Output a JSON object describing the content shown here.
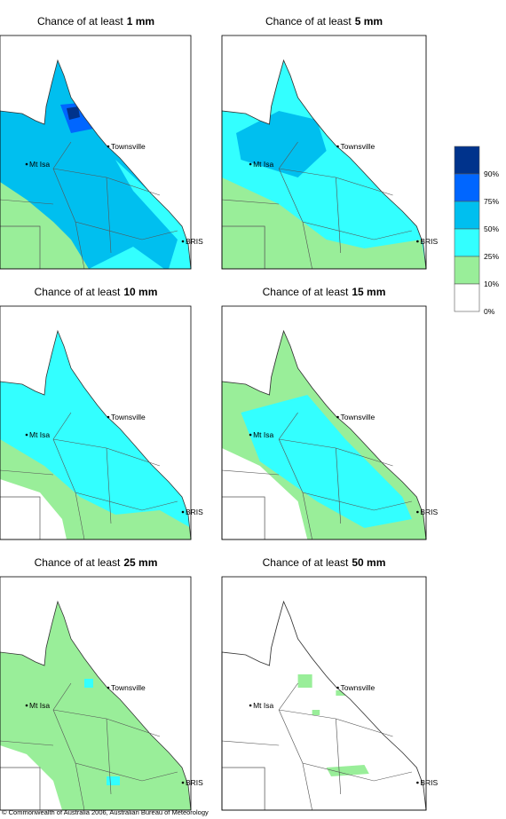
{
  "panels": [
    {
      "title_prefix": "Chance of at least",
      "amount": "1 mm"
    },
    {
      "title_prefix": "Chance of at least",
      "amount": "5 mm"
    },
    {
      "title_prefix": "Chance of at least",
      "amount": "10 mm"
    },
    {
      "title_prefix": "Chance of at least",
      "amount": "15 mm"
    },
    {
      "title_prefix": "Chance of at least",
      "amount": "25 mm"
    },
    {
      "title_prefix": "Chance of at least",
      "amount": "50 mm"
    }
  ],
  "places": [
    "Townsville",
    "Mt Isa",
    "BRIS"
  ],
  "legend": {
    "colors": [
      "#00338c",
      "#0066ff",
      "#00bfef",
      "#33ffff",
      "#99ee99",
      "#ffffff"
    ],
    "labels": [
      "90%",
      "75%",
      "50%",
      "25%",
      "10%",
      "0%"
    ]
  },
  "footer": "© Commonwealth of Australia 2006, Australian Bureau of Meteorology"
}
